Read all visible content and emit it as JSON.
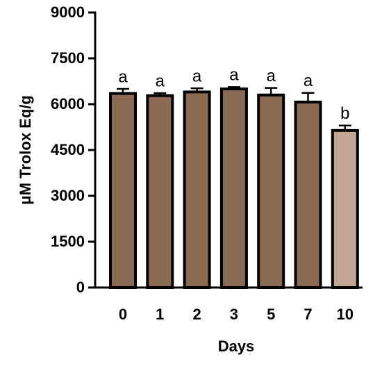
{
  "chart_data": {
    "type": "bar",
    "x_label": "Days",
    "y_label": "μM Trolox Eq/g",
    "categories": [
      "0",
      "1",
      "2",
      "3",
      "5",
      "7",
      "10"
    ],
    "values": [
      6350,
      6280,
      6400,
      6500,
      6300,
      6070,
      5140
    ],
    "errors": [
      150,
      80,
      120,
      60,
      230,
      300,
      160
    ],
    "annotations": [
      "a",
      "a",
      "a",
      "a",
      "a",
      "a",
      "b"
    ],
    "colors": [
      "#8a6a52",
      "#8a6a52",
      "#8a6a52",
      "#8a6a52",
      "#8a6a52",
      "#8a6a52",
      "#c4a694"
    ],
    "ylim": [
      0,
      9000
    ],
    "yticks": [
      0,
      1500,
      3000,
      4500,
      6000,
      7500,
      9000
    ],
    "grid": false
  }
}
